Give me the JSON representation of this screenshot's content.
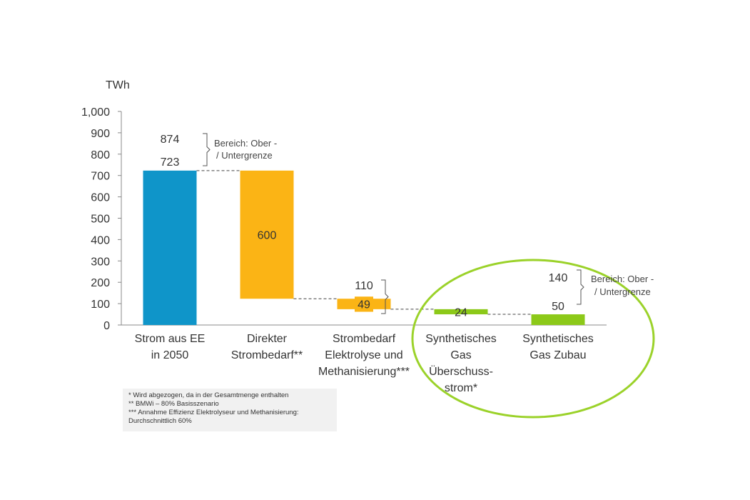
{
  "chart_data": {
    "type": "bar",
    "subtype": "waterfall",
    "unit_label": "TWh",
    "ylim": [
      0,
      1000
    ],
    "yticks": [
      "0",
      "100",
      "200",
      "300",
      "400",
      "500",
      "600",
      "700",
      "800",
      "900",
      "1,000"
    ],
    "ytick_values": [
      0,
      100,
      200,
      300,
      400,
      500,
      600,
      700,
      800,
      900,
      1000
    ],
    "grid": false,
    "categories": [
      [
        "Strom aus EE",
        "in 2050"
      ],
      [
        "Direkter",
        "Strombedarf**"
      ],
      [
        "Strombedarf",
        "Elektrolyse und",
        "Methanisierung***"
      ],
      [
        "Synthetisches",
        "Gas",
        "Überschuss-",
        "strom*"
      ],
      [
        "Synthetisches",
        "Gas Zubau"
      ]
    ],
    "bars": [
      {
        "base": 0,
        "top": 723,
        "value": 723,
        "label": "723",
        "color": "#0f95c9"
      },
      {
        "base": 123,
        "top": 723,
        "value": 600,
        "label": "600",
        "color": "#fbb415"
      },
      {
        "base": 74,
        "top": 123,
        "value": 49,
        "label": "49",
        "color": "#fbb415"
      },
      {
        "base": 50,
        "top": 74,
        "value": 24,
        "label": "24",
        "color": "#8cc919"
      },
      {
        "base": 0,
        "top": 50,
        "value": 50,
        "label": "50",
        "color": "#8cc919"
      }
    ],
    "range_annotations": [
      {
        "upper": "874",
        "lower": "723",
        "text": [
          "Bereich: Ober -",
          "/ Untergrenze"
        ]
      },
      {
        "upper": "110",
        "lower": "49"
      },
      {
        "upper": "140",
        "lower": "50",
        "text": [
          "Bereich: Ober -",
          "/ Untergrenze"
        ]
      }
    ],
    "highlight_color": "#9bd22a"
  },
  "footnotes": [
    "* Wird abgezogen, da in der Gesamtmenge enthalten",
    "** BMWi – 80% Basisszenario",
    "*** Annahme Effizienz Elektrolyseur und Methanisierung:",
    "Durchschnittlich 60%"
  ]
}
